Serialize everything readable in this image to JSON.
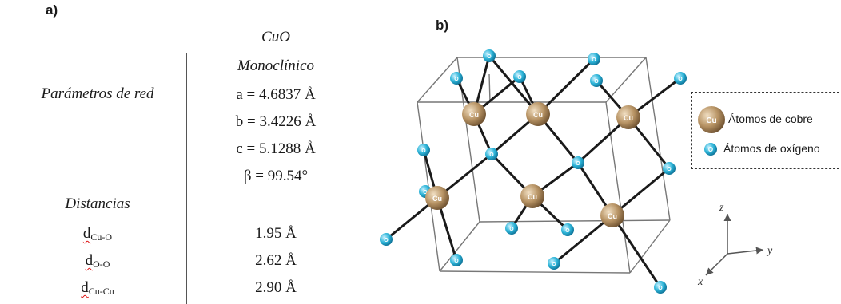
{
  "panel_a": {
    "letter": "a)",
    "compound": "CuO",
    "system": "Monoclínico",
    "lattice_header": "Parámetros de red",
    "lattice": [
      "a = 4.6837 Å",
      "b = 3.4226 Å",
      "c = 5.1288 Å",
      "β = 99.54°"
    ],
    "distances_header": "Distancias",
    "distances": [
      {
        "sym": "d",
        "sub": "Cu-O",
        "value": "1.95 Å"
      },
      {
        "sym": "d",
        "sub": "O-O",
        "value": "2.62 Å"
      },
      {
        "sym": "d",
        "sub": "Cu-Cu",
        "value": "2.90 Å"
      }
    ]
  },
  "panel_b": {
    "letter": "b)",
    "cu_label": "Cu",
    "o_label": "O",
    "legend": {
      "copper": "Átomos de cobre",
      "oxygen": "Átomos de oxígeno"
    },
    "axes": {
      "z": "z",
      "y": "y",
      "x": "x"
    }
  },
  "colors": {
    "copper": "#b89465",
    "oxygen": "#2cb4d8",
    "bond": "#1a1a1a",
    "cell_edge": "#777777"
  }
}
